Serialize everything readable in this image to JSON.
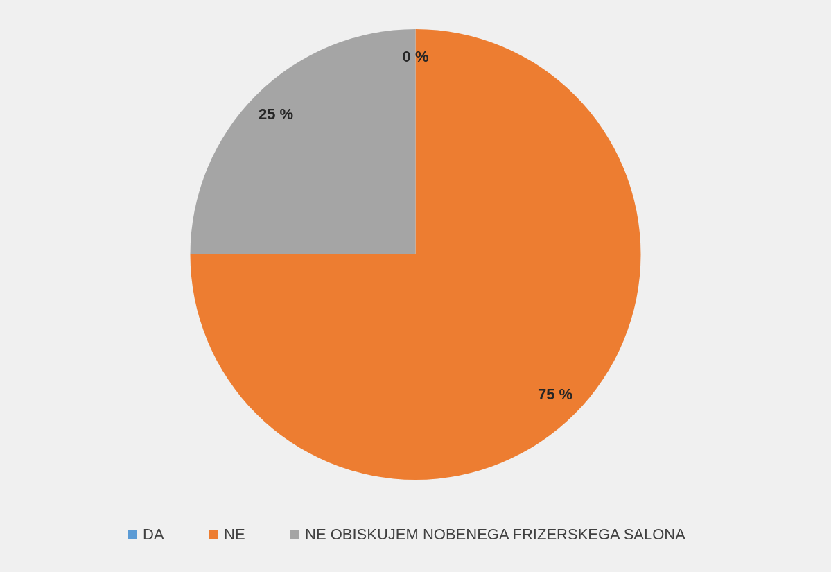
{
  "chart_data": {
    "type": "pie",
    "categories": [
      "DA",
      "NE",
      "NE OBISKUJEM NOBENEGA FRIZERSKEGA SALONA"
    ],
    "values": [
      0,
      75,
      25
    ],
    "colors": [
      "#5b9bd5",
      "#ed7d31",
      "#a5a5a5"
    ],
    "value_labels": [
      "0 %",
      "75 %",
      "25 %"
    ],
    "legend": "bottom"
  }
}
